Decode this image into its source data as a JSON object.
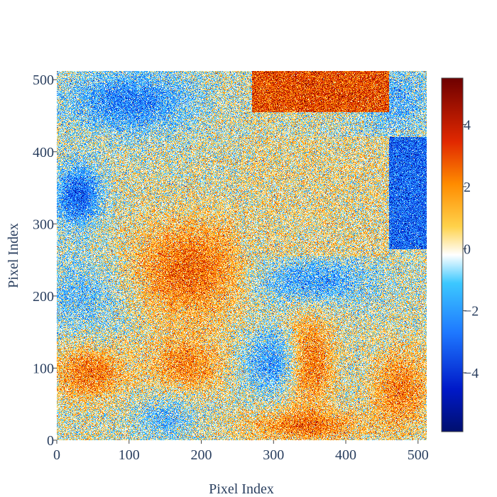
{
  "chart_data": {
    "type": "heatmap",
    "title": "",
    "xlabel": "Pixel Index",
    "ylabel": "Pixel Index",
    "xlim": [
      0,
      512
    ],
    "ylim": [
      0,
      512
    ],
    "x_ticks": [
      0,
      100,
      200,
      300,
      400,
      500
    ],
    "y_ticks": [
      0,
      100,
      200,
      300,
      400,
      500
    ],
    "x_tick_labels": [
      "0",
      "100",
      "200",
      "300",
      "400",
      "500"
    ],
    "y_tick_labels": [
      "0",
      "100",
      "200",
      "300",
      "400",
      "500"
    ],
    "value_range": [
      -5.9,
      5.5
    ],
    "colorbar": {
      "ticks": [
        4,
        2,
        0,
        -2,
        -4
      ],
      "tick_labels": [
        "4",
        "2",
        "0",
        "−2",
        "−4"
      ],
      "colorscale": [
        [
          0.0,
          "#000f6e"
        ],
        [
          0.12,
          "#0019c8"
        ],
        [
          0.28,
          "#1e78ff"
        ],
        [
          0.42,
          "#3cc8ff"
        ],
        [
          0.5,
          "#ffffff"
        ],
        [
          0.58,
          "#ffd24b"
        ],
        [
          0.7,
          "#ff8c00"
        ],
        [
          0.82,
          "#e12800"
        ],
        [
          1.0,
          "#6e0000"
        ]
      ]
    },
    "grid": false,
    "noise_description": "high-frequency pixel noise over smooth blob field",
    "regions": [
      {
        "name": "top-red-band",
        "x": [
          270,
          460
        ],
        "y": [
          455,
          512
        ],
        "mean": 3.0
      },
      {
        "name": "right-blue-strip",
        "x": [
          460,
          512
        ],
        "y": [
          265,
          420
        ],
        "mean": -3.0
      },
      {
        "name": "center-flat-patch",
        "x": [
          255,
          460
        ],
        "y": [
          255,
          420
        ],
        "mean": 0.3
      },
      {
        "name": "left-blue-blob",
        "x": [
          0,
          60
        ],
        "y": [
          300,
          380
        ],
        "mean": -3.2
      },
      {
        "name": "top-left-blue-blob",
        "x": [
          20,
          180
        ],
        "y": [
          430,
          510
        ],
        "mean": -2.5
      },
      {
        "name": "center-red-blob",
        "x": [
          110,
          260
        ],
        "y": [
          170,
          300
        ],
        "mean": 2.6
      },
      {
        "name": "lower-left-red-blob",
        "x": [
          0,
          90
        ],
        "y": [
          60,
          130
        ],
        "mean": 2.4
      },
      {
        "name": "lower-mid-red-blob",
        "x": [
          130,
          230
        ],
        "y": [
          70,
          140
        ],
        "mean": 2.0
      },
      {
        "name": "lower-center-blue-blob",
        "x": [
          260,
          340
        ],
        "y": [
          70,
          150
        ],
        "mean": -2.2
      },
      {
        "name": "lower-center-red-blob",
        "x": [
          320,
          380
        ],
        "y": [
          50,
          170
        ],
        "mean": 2.6
      },
      {
        "name": "center-blue-blob",
        "x": [
          270,
          430
        ],
        "y": [
          190,
          250
        ],
        "mean": -2.0
      },
      {
        "name": "bottom-red-band",
        "x": [
          270,
          420
        ],
        "y": [
          0,
          40
        ],
        "mean": 2.2
      },
      {
        "name": "bottom-right-red",
        "x": [
          440,
          512
        ],
        "y": [
          20,
          120
        ],
        "mean": 2.2
      }
    ]
  }
}
